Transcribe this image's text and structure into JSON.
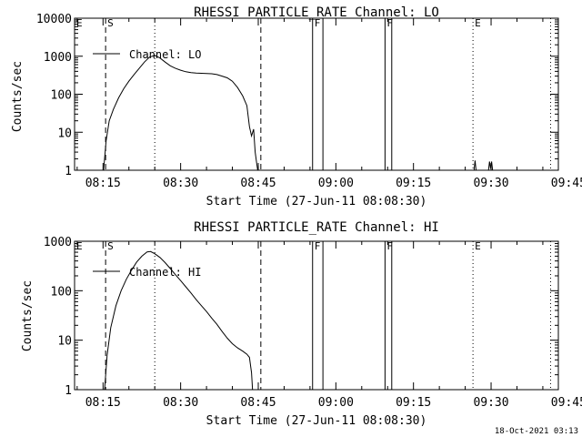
{
  "chart_data": [
    {
      "type": "line",
      "title": "RHESSI PARTICLE_RATE Channel: LO",
      "xlabel": "Start Time (27-Jun-11 08:08:30)",
      "ylabel": "Counts/sec",
      "yscale": "log",
      "ylim": [
        1,
        10000
      ],
      "xlim_minutes_from_0800": [
        9.5,
        103
      ],
      "x_ticks": [
        {
          "label": "08:15",
          "minute": 15
        },
        {
          "label": "08:30",
          "minute": 30
        },
        {
          "label": "08:45",
          "minute": 45
        },
        {
          "label": "09:00",
          "minute": 60
        },
        {
          "label": "09:15",
          "minute": 75
        },
        {
          "label": "09:30",
          "minute": 90
        },
        {
          "label": "09:45",
          "minute": 105
        }
      ],
      "y_ticks": [
        {
          "label": "1",
          "value": 1
        },
        {
          "label": "10",
          "value": 10
        },
        {
          "label": "100",
          "value": 100
        },
        {
          "label": "1000",
          "value": 1000
        },
        {
          "label": "10000",
          "value": 10000
        }
      ],
      "legend": {
        "label": "Channel: LO",
        "position": "top-left"
      },
      "markers": [
        {
          "label": "E",
          "minute": 9.5,
          "style": "none"
        },
        {
          "label": "S",
          "minute": 15.5,
          "style": "dashed"
        },
        {
          "label": "",
          "minute": 25,
          "style": "dotted"
        },
        {
          "label": "",
          "minute": 45.5,
          "style": "dashed"
        },
        {
          "label": "F",
          "minute": 55.5,
          "style": "solid"
        },
        {
          "label": "",
          "minute": 57.5,
          "style": "solid"
        },
        {
          "label": "F",
          "minute": 69.5,
          "style": "solid"
        },
        {
          "label": "",
          "minute": 70.8,
          "style": "solid"
        },
        {
          "label": "E",
          "minute": 86.5,
          "style": "dotted"
        },
        {
          "label": "",
          "minute": 101.5,
          "style": "dotted"
        }
      ],
      "series": [
        {
          "name": "Channel: LO",
          "segments": [
            [
              [
                15.1,
                1
              ],
              [
                15.6,
                6
              ],
              [
                16.2,
                20
              ],
              [
                17,
                40
              ],
              [
                18,
                80
              ],
              [
                19,
                140
              ],
              [
                20,
                220
              ],
              [
                21,
                330
              ],
              [
                22,
                480
              ],
              [
                23,
                700
              ],
              [
                24,
                950
              ],
              [
                25,
                1050
              ],
              [
                26,
                900
              ],
              [
                27,
                700
              ],
              [
                28,
                560
              ],
              [
                29,
                480
              ],
              [
                30,
                430
              ],
              [
                31,
                390
              ],
              [
                32,
                370
              ],
              [
                33,
                360
              ],
              [
                34,
                355
              ],
              [
                35,
                350
              ],
              [
                36,
                345
              ],
              [
                37,
                330
              ],
              [
                38,
                300
              ],
              [
                39,
                270
              ],
              [
                40,
                220
              ],
              [
                41,
                150
              ],
              [
                42,
                90
              ],
              [
                42.8,
                50
              ],
              [
                43.3,
                14
              ],
              [
                43.7,
                8
              ],
              [
                44.1,
                12
              ],
              [
                44.4,
                3
              ],
              [
                44.7,
                1.5
              ],
              [
                44.9,
                1
              ]
            ],
            [
              [
                86.7,
                1
              ],
              [
                86.9,
                1.8
              ],
              [
                87.1,
                1
              ]
            ],
            [
              [
                89.5,
                1
              ],
              [
                89.7,
                1.7
              ],
              [
                89.9,
                1.1
              ],
              [
                90.1,
                1.7
              ],
              [
                90.3,
                1
              ]
            ]
          ]
        }
      ]
    },
    {
      "type": "line",
      "title": "RHESSI PARTICLE_RATE Channel: HI",
      "xlabel": "Start Time (27-Jun-11 08:08:30)",
      "ylabel": "Counts/sec",
      "yscale": "log",
      "ylim": [
        1,
        1000
      ],
      "xlim_minutes_from_0800": [
        9.5,
        103
      ],
      "x_ticks": [
        {
          "label": "08:15",
          "minute": 15
        },
        {
          "label": "08:30",
          "minute": 30
        },
        {
          "label": "08:45",
          "minute": 45
        },
        {
          "label": "09:00",
          "minute": 60
        },
        {
          "label": "09:15",
          "minute": 75
        },
        {
          "label": "09:30",
          "minute": 90
        },
        {
          "label": "09:45",
          "minute": 105
        }
      ],
      "y_ticks": [
        {
          "label": "1",
          "value": 1
        },
        {
          "label": "10",
          "value": 10
        },
        {
          "label": "100",
          "value": 100
        },
        {
          "label": "1000",
          "value": 1000
        }
      ],
      "legend": {
        "label": "Channel: HI",
        "position": "top-left"
      },
      "markers": [
        {
          "label": "E",
          "minute": 9.5,
          "style": "none"
        },
        {
          "label": "S",
          "minute": 15.5,
          "style": "dashed"
        },
        {
          "label": "",
          "minute": 25,
          "style": "dotted"
        },
        {
          "label": "",
          "minute": 45.5,
          "style": "dashed"
        },
        {
          "label": "F",
          "minute": 55.5,
          "style": "solid"
        },
        {
          "label": "",
          "minute": 57.5,
          "style": "solid"
        },
        {
          "label": "F",
          "minute": 69.5,
          "style": "solid"
        },
        {
          "label": "",
          "minute": 70.8,
          "style": "solid"
        },
        {
          "label": "E",
          "minute": 86.5,
          "style": "dotted"
        },
        {
          "label": "",
          "minute": 101.5,
          "style": "dotted"
        }
      ],
      "series": [
        {
          "name": "Channel: HI",
          "segments": [
            [
              [
                15.3,
                1
              ],
              [
                15.8,
                5
              ],
              [
                16.5,
                18
              ],
              [
                17.5,
                50
              ],
              [
                18.5,
                100
              ],
              [
                19.5,
                170
              ],
              [
                20.5,
                260
              ],
              [
                21.5,
                380
              ],
              [
                22.5,
                500
              ],
              [
                23.5,
                610
              ],
              [
                24.2,
                620
              ],
              [
                25,
                560
              ],
              [
                26,
                470
              ],
              [
                27,
                370
              ],
              [
                28,
                280
              ],
              [
                29,
                210
              ],
              [
                30,
                160
              ],
              [
                31,
                120
              ],
              [
                32,
                90
              ],
              [
                33,
                66
              ],
              [
                34,
                50
              ],
              [
                35,
                38
              ],
              [
                36,
                28
              ],
              [
                37,
                21
              ],
              [
                38,
                15
              ],
              [
                39,
                11
              ],
              [
                40,
                8.5
              ],
              [
                41,
                7
              ],
              [
                42,
                6
              ],
              [
                42.8,
                5.2
              ],
              [
                43.3,
                4.5
              ],
              [
                43.7,
                2.2
              ],
              [
                43.9,
                1
              ]
            ]
          ]
        }
      ]
    }
  ],
  "footer": {
    "timestamp": "18-Oct-2021 03:13"
  }
}
